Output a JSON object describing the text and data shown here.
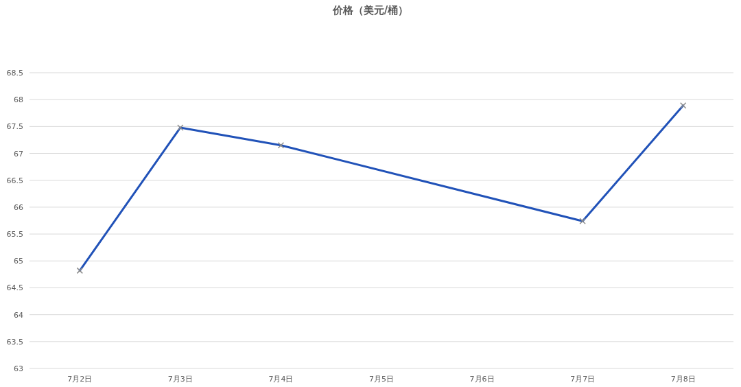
{
  "chart_data": {
    "type": "line",
    "title": "价格（美元/桶）",
    "categories": [
      "7月2日",
      "7月3日",
      "7月4日",
      "7月5日",
      "7月6日",
      "7月7日",
      "7月8日"
    ],
    "series": [
      {
        "color": "#2152b8",
        "values": [
          64.82,
          67.48,
          67.15,
          null,
          null,
          65.74,
          67.89
        ]
      }
    ],
    "ylim": [
      63,
      68.5
    ],
    "yticks": [
      63,
      63.5,
      64,
      64.5,
      65,
      65.5,
      66,
      66.5,
      67,
      67.5,
      68,
      68.5
    ],
    "grid": "y",
    "marker": "cross",
    "line_style": "solid"
  }
}
